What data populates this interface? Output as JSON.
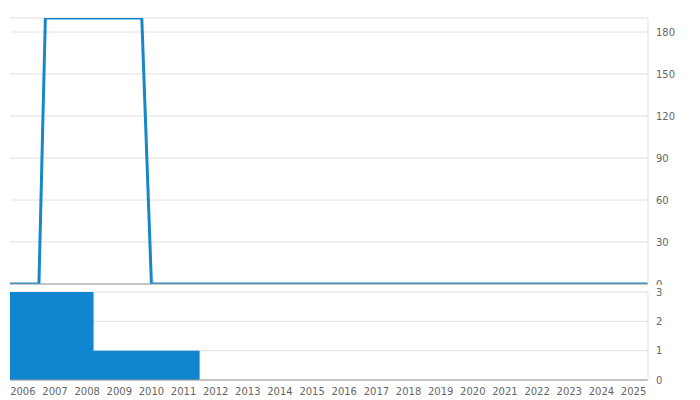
{
  "chart_data": [
    {
      "type": "line",
      "x": [
        2005.6,
        2006.5,
        2006.7,
        2009.7,
        2010.0,
        2025.45
      ],
      "values": [
        0,
        0,
        190,
        190,
        0,
        0
      ],
      "color": "#1787cb",
      "xlim": [
        2005.6,
        2025.45
      ],
      "ylim": [
        0,
        190
      ],
      "yticks": [
        0,
        30,
        60,
        90,
        120,
        150,
        180
      ],
      "grid": true,
      "tick_labels": "y"
    },
    {
      "type": "histogram",
      "bins": [
        2005.6,
        2008.2,
        2011.5
      ],
      "values": [
        3,
        1
      ],
      "color": "#0f86cf",
      "xlim": [
        2005.6,
        2025.45
      ],
      "xticks": [
        2006,
        2007,
        2008,
        2009,
        2010,
        2011,
        2012,
        2013,
        2014,
        2015,
        2016,
        2017,
        2018,
        2019,
        2020,
        2021,
        2022,
        2023,
        2024,
        2025
      ],
      "ylim": [
        0,
        3
      ],
      "yticks": [
        0,
        1,
        2,
        3
      ],
      "grid": true
    }
  ]
}
